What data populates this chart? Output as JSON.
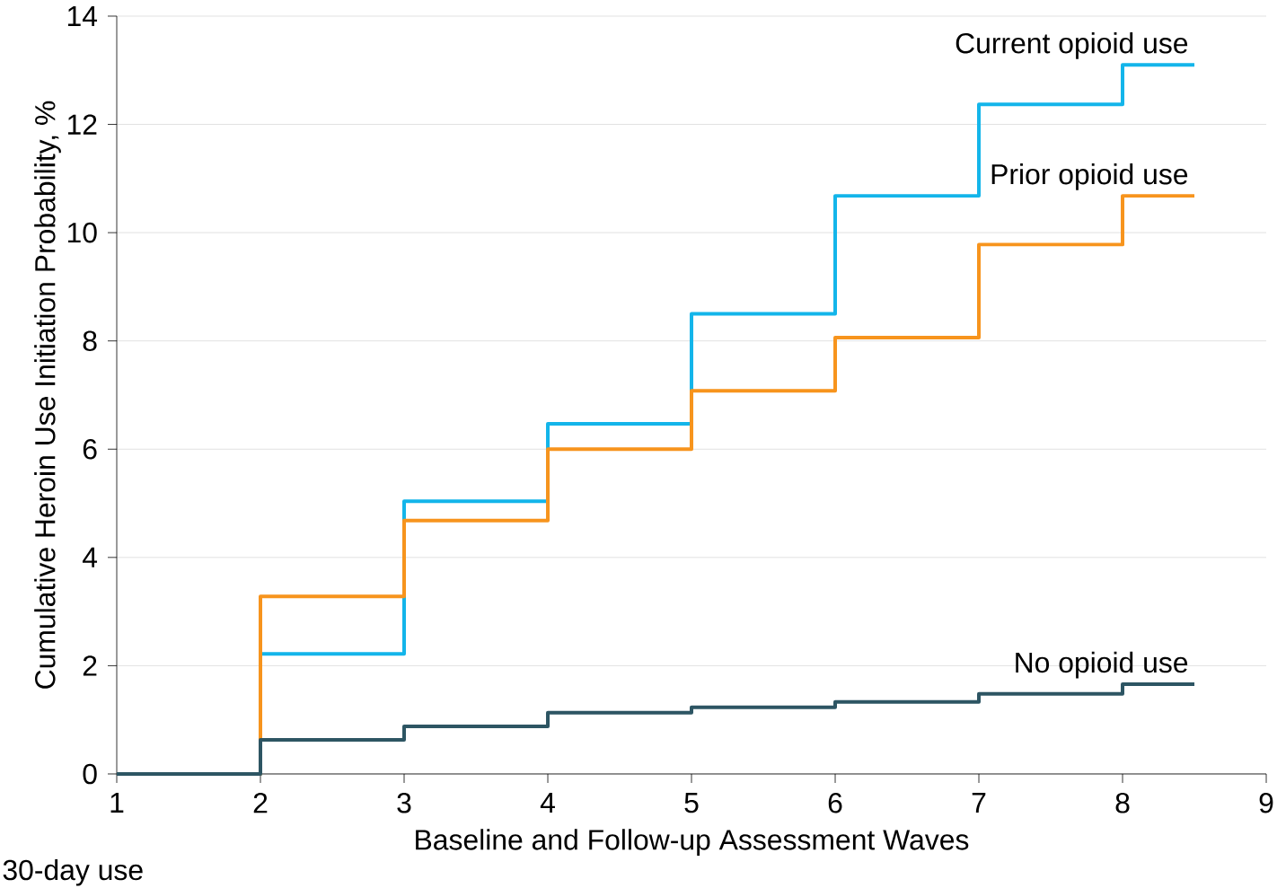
{
  "chart_data": {
    "type": "step",
    "xlabel": "Baseline and Follow-up Assessment Waves",
    "ylabel": "Cumulative Heroin Use Initiation Probability, %",
    "x": [
      1,
      2,
      3,
      4,
      5,
      6,
      7,
      8,
      8.5
    ],
    "series": [
      {
        "name": "Current opioid use",
        "color": "#13b5ea",
        "values": [
          0,
          2.22,
          5.04,
          6.47,
          8.5,
          10.68,
          12.37,
          13.1,
          13.1
        ]
      },
      {
        "name": "Prior opioid use",
        "color": "#f7941d",
        "values": [
          0,
          3.28,
          4.68,
          6.0,
          7.08,
          8.06,
          9.78,
          10.68,
          10.68
        ]
      },
      {
        "name": "No opioid use",
        "color": "#2d5563",
        "values": [
          0,
          0.63,
          0.88,
          1.13,
          1.23,
          1.33,
          1.48,
          1.66,
          1.66
        ]
      }
    ],
    "xlim": [
      1,
      9
    ],
    "ylim": [
      0,
      14
    ],
    "xticks": [
      1,
      2,
      3,
      4,
      5,
      6,
      7,
      8,
      9
    ],
    "yticks": [
      0,
      2,
      4,
      6,
      8,
      10,
      12,
      14
    ],
    "grid": "y",
    "annotations": [
      "30-day use"
    ]
  }
}
